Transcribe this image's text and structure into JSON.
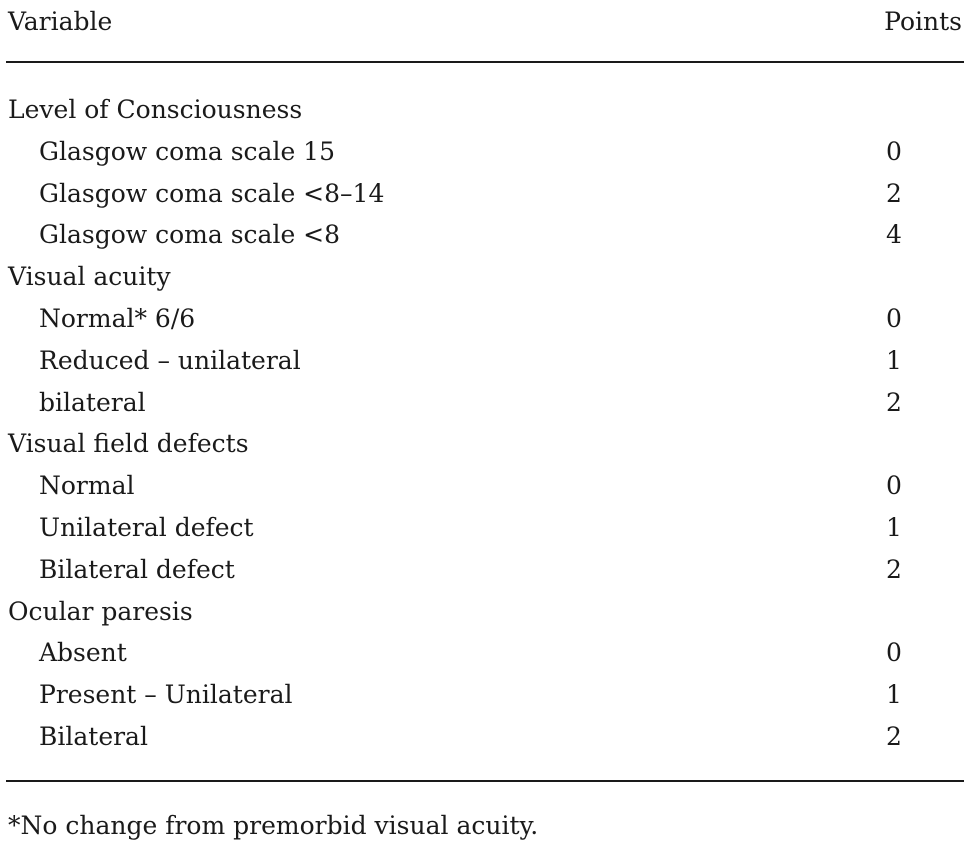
{
  "header": {
    "variable_label": "Variable",
    "points_label": "Points"
  },
  "rows": [
    {
      "type": "group",
      "label": "Level of Consciousness",
      "points": ""
    },
    {
      "type": "item",
      "label": "Glasgow coma scale 15",
      "points": "0"
    },
    {
      "type": "item",
      "label": "Glasgow coma scale <8–14",
      "points": "2"
    },
    {
      "type": "item",
      "label": "Glasgow coma scale <8",
      "points": "4"
    },
    {
      "type": "group",
      "label": "Visual acuity",
      "points": ""
    },
    {
      "type": "item",
      "label": "Normal* 6/6",
      "points": "0"
    },
    {
      "type": "item",
      "label": "Reduced – unilateral",
      "points": "1"
    },
    {
      "type": "item",
      "label": "bilateral",
      "points": "2"
    },
    {
      "type": "group",
      "label": "Visual field defects",
      "points": ""
    },
    {
      "type": "item",
      "label": "Normal",
      "points": "0"
    },
    {
      "type": "item",
      "label": "Unilateral defect",
      "points": "1"
    },
    {
      "type": "item",
      "label": "Bilateral defect",
      "points": "2"
    },
    {
      "type": "group",
      "label": "Ocular paresis",
      "points": ""
    },
    {
      "type": "item",
      "label": "Absent",
      "points": "0"
    },
    {
      "type": "item",
      "label": "Present – Unilateral",
      "points": "1"
    },
    {
      "type": "item",
      "label": "Bilateral",
      "points": "2"
    }
  ],
  "footnote": "*No change from premorbid visual acuity."
}
